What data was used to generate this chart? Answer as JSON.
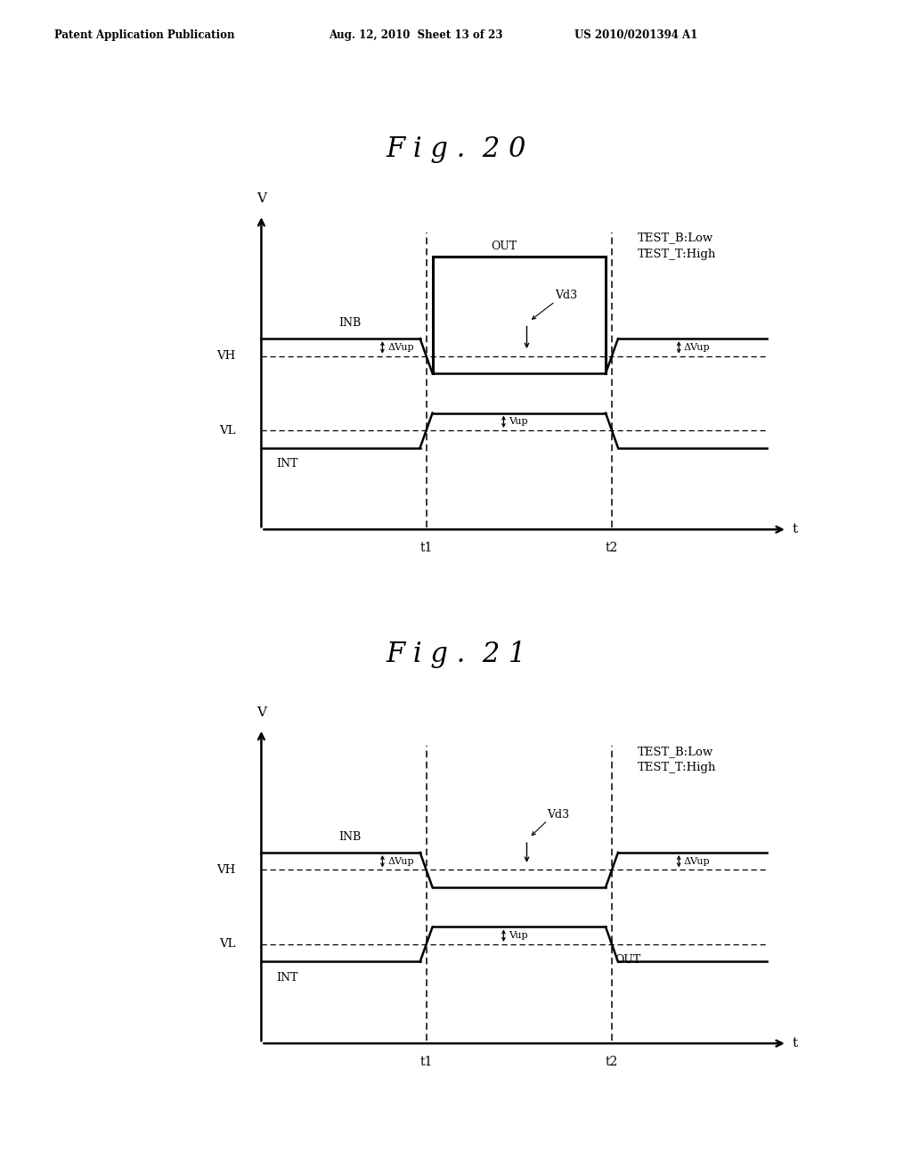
{
  "header_left": "Patent Application Publication",
  "header_mid": "Aug. 12, 2010  Sheet 13 of 23",
  "header_right": "US 2010/0201394 A1",
  "fig20_title": "F i g .  2 0",
  "fig21_title": "F i g .  2 1",
  "background": "#ffffff",
  "VH": 0.55,
  "VL": 0.25,
  "OUT_high": 0.95,
  "t1": 3.2,
  "t2": 6.8,
  "test_label": "TEST_B:Low\nTEST_T:High",
  "Vup": 0.07
}
